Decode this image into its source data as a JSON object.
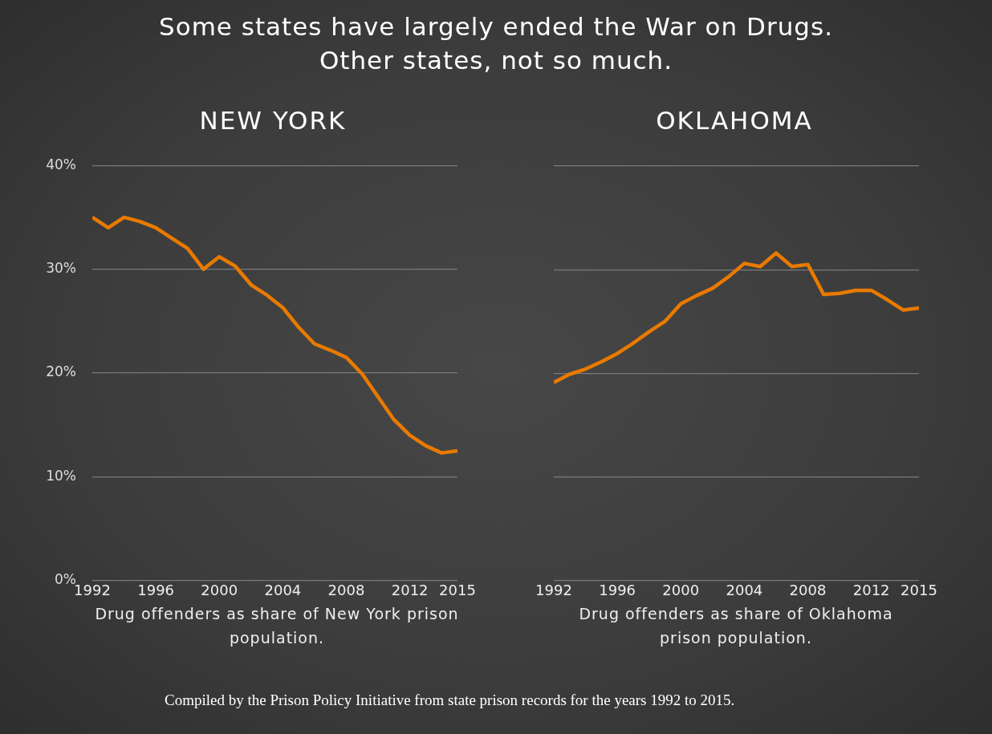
{
  "chart_data": [
    {
      "type": "line",
      "title": "NEW YORK",
      "xlabel": "Drug offenders as share of New York prison population.",
      "annotations": [
        "Some states have largely ended the War on Drugs. Other states, not so much."
      ],
      "x": [
        1992,
        1993,
        1994,
        1995,
        1996,
        1997,
        1998,
        1999,
        2000,
        2001,
        2002,
        2003,
        2004,
        2005,
        2006,
        2007,
        2008,
        2009,
        2010,
        2011,
        2012,
        2013,
        2014,
        2015
      ],
      "series": [
        {
          "color": "#e87a00",
          "values": [
            35.0,
            34.0,
            35.0,
            34.6,
            34.0,
            33.0,
            32.0,
            30.0,
            31.2,
            30.3,
            28.5,
            27.5,
            26.3,
            24.4,
            22.8,
            22.2,
            21.5,
            19.9,
            17.7,
            15.5,
            14.0,
            13.0,
            12.3,
            12.5
          ]
        }
      ],
      "xlim": [
        1992,
        2015
      ],
      "xticks": [
        1992,
        1996,
        2000,
        2004,
        2008,
        2012,
        2015
      ],
      "ylim": [
        0,
        40
      ],
      "yticks": [
        {
          "value": 0,
          "label": "0%"
        },
        {
          "value": 10,
          "label": "10%"
        },
        {
          "value": 20,
          "label": "20%"
        },
        {
          "value": 30,
          "label": "30%"
        },
        {
          "value": 40,
          "label": "40%"
        }
      ],
      "grid": "y",
      "legend": false,
      "marker": "none",
      "line_style": "solid"
    },
    {
      "type": "line",
      "title": "OKLAHOMA",
      "xlabel": "Drug offenders as share of Oklahoma prison population.",
      "annotations": [
        "Compiled by the Prison Policy Initiative from state prison records for the years 1992 to 2015."
      ],
      "x": [
        1992,
        1993,
        1994,
        1995,
        1996,
        1997,
        1998,
        1999,
        2000,
        2001,
        2002,
        2003,
        2004,
        2005,
        2006,
        2007,
        2008,
        2009,
        2010,
        2011,
        2012,
        2013,
        2014,
        2015
      ],
      "series": [
        {
          "color": "#e87a00",
          "values": [
            19.1,
            19.9,
            20.4,
            21.1,
            21.9,
            22.9,
            24.0,
            25.0,
            26.7,
            27.5,
            28.2,
            29.3,
            30.6,
            30.3,
            31.6,
            30.3,
            30.5,
            27.6,
            27.7,
            28.0,
            28.0,
            27.1,
            26.1,
            26.3
          ]
        }
      ],
      "xlim": [
        1992,
        2015
      ],
      "xticks": [
        1992,
        1996,
        2000,
        2004,
        2008,
        2012,
        2015
      ],
      "ylim": [
        0,
        40
      ],
      "yticks": [
        {
          "value": 0,
          "label": null
        },
        {
          "value": 10,
          "label": null
        },
        {
          "value": 20,
          "label": null
        },
        {
          "value": 30,
          "label": null
        },
        {
          "value": 40,
          "label": null
        }
      ],
      "tick_labels": "x",
      "grid": "y",
      "legend": false,
      "marker": "none",
      "line_style": "solid"
    }
  ]
}
